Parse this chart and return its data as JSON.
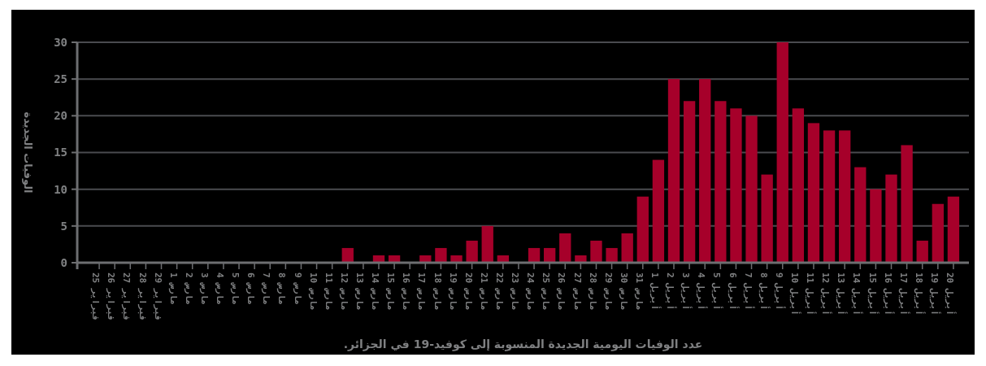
{
  "chart_data": {
    "type": "bar",
    "xlabel": "عدد الوفيات اليومية الجديدة  المنسوبة إلى كوفيد-19 في الجزائر.",
    "ylabel": "الوفيات الجديدة",
    "categories": [
      "25 فبراير",
      "26 فبراير",
      "27 فبراير",
      "28 فبراير",
      "29 فبراير",
      "1 مارس",
      "2 مارس",
      "3 مارس",
      "4 مارس",
      "5 مارس",
      "6 مارس",
      "7 مارس",
      "8 مارس",
      "9 مارس",
      "10 مارس",
      "11 مارس",
      "12 مارس",
      "13 مارس",
      "14 مارس",
      "15 مارس",
      "16 مارس",
      "17 مارس",
      "18 مارس",
      "19 مارس",
      "20 مارس",
      "21 مارس",
      "22 مارس",
      "23 مارس",
      "24 مارس",
      "25 مارس",
      "26 مارس",
      "27 مارس",
      "28 مارس",
      "29 مارس",
      "30 مارس",
      "31 مارس",
      "1 أبريل",
      "2 أبريل",
      "3 أبريل",
      "4 أبريل",
      "5 أبريل",
      "6 أبريل",
      "7 أبريل",
      "8 أبريل",
      "9 أبريل",
      "10 أبريل",
      "11 أبريل",
      "12 أبريل",
      "13 أبريل",
      "14 أبريل",
      "15 أبريل",
      "16 أبريل",
      "17 أبريل",
      "18 أبريل",
      "19 أبريل",
      "20 أبريل"
    ],
    "values": [
      0,
      0,
      0,
      0,
      0,
      0,
      0,
      0,
      0,
      0,
      0,
      0,
      0,
      0,
      0,
      0,
      2,
      0,
      1,
      1,
      0,
      1,
      2,
      1,
      3,
      5,
      1,
      0,
      2,
      2,
      4,
      1,
      3,
      2,
      4,
      9,
      14,
      25,
      22,
      25,
      22,
      21,
      20,
      12,
      30,
      21,
      19,
      18,
      18,
      13,
      10,
      12,
      16,
      3,
      8,
      9
    ],
    "color": "#a6002a",
    "ylim": [
      0,
      30
    ],
    "yticks": [
      0,
      5,
      10,
      15,
      20,
      25,
      30
    ],
    "grid": "y"
  }
}
